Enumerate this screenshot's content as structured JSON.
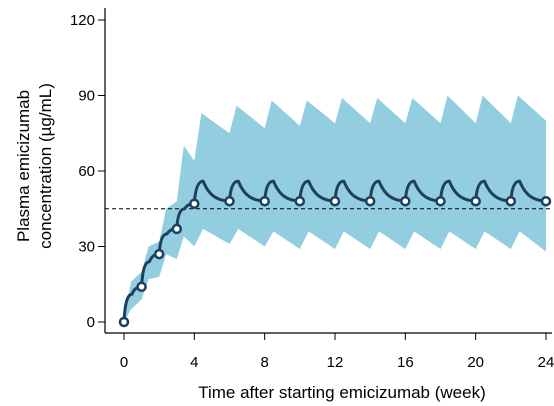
{
  "chart_data": {
    "type": "line",
    "xlabel": "Time after starting emicizumab (week)",
    "ylabel_line1": "Plasma emicizumab",
    "ylabel_line2": "concentration (µg/mL)",
    "xlim": [
      0,
      24
    ],
    "ylim": [
      0,
      120
    ],
    "x_ticks": [
      0,
      4,
      8,
      12,
      16,
      20,
      24
    ],
    "y_ticks": [
      0,
      30,
      60,
      90,
      120
    ],
    "reference_line_y": 45,
    "colors": {
      "median_line": "#1f3f5e",
      "band": "#92cee0",
      "reference_line": "#000000",
      "marker_fill": "#ffffff"
    },
    "series": [
      {
        "role": "median",
        "loading_dose_times": [
          0,
          1,
          2,
          3
        ],
        "maintenance_dose_times": [
          4,
          6,
          8,
          10,
          12,
          14,
          16,
          18,
          20,
          22
        ],
        "trough_points": [
          {
            "x": 0,
            "y": 0
          },
          {
            "x": 1,
            "y": 14
          },
          {
            "x": 2,
            "y": 27
          },
          {
            "x": 3,
            "y": 37
          },
          {
            "x": 4,
            "y": 47
          },
          {
            "x": 6,
            "y": 48
          },
          {
            "x": 8,
            "y": 48
          },
          {
            "x": 10,
            "y": 48
          },
          {
            "x": 12,
            "y": 48
          },
          {
            "x": 14,
            "y": 48
          },
          {
            "x": 16,
            "y": 48
          },
          {
            "x": 18,
            "y": 48
          },
          {
            "x": 20,
            "y": 48
          },
          {
            "x": 22,
            "y": 48
          },
          {
            "x": 24,
            "y": 48
          }
        ],
        "peak_points": [
          {
            "x": 0.45,
            "y": 11
          },
          {
            "x": 1.45,
            "y": 24
          },
          {
            "x": 2.45,
            "y": 35
          },
          {
            "x": 3.45,
            "y": 45
          },
          {
            "x": 4.5,
            "y": 56
          },
          {
            "x": 6.5,
            "y": 56
          },
          {
            "x": 8.5,
            "y": 56
          },
          {
            "x": 10.5,
            "y": 56
          },
          {
            "x": 12.5,
            "y": 56
          },
          {
            "x": 14.5,
            "y": 56
          },
          {
            "x": 16.5,
            "y": 56
          },
          {
            "x": 18.5,
            "y": 56
          },
          {
            "x": 20.5,
            "y": 56
          },
          {
            "x": 22.5,
            "y": 56
          }
        ]
      },
      {
        "role": "interval",
        "upper": [
          {
            "x": 0,
            "y": 0
          },
          {
            "x": 0.4,
            "y": 16
          },
          {
            "x": 1,
            "y": 20
          },
          {
            "x": 1.4,
            "y": 30
          },
          {
            "x": 2,
            "y": 32
          },
          {
            "x": 2.4,
            "y": 45
          },
          {
            "x": 3,
            "y": 48
          },
          {
            "x": 3.4,
            "y": 70
          },
          {
            "x": 4,
            "y": 64
          },
          {
            "x": 4.4,
            "y": 83
          },
          {
            "x": 6,
            "y": 75
          },
          {
            "x": 6.4,
            "y": 86
          },
          {
            "x": 8,
            "y": 77
          },
          {
            "x": 8.4,
            "y": 88
          },
          {
            "x": 10,
            "y": 78
          },
          {
            "x": 10.4,
            "y": 88
          },
          {
            "x": 12,
            "y": 79
          },
          {
            "x": 12.4,
            "y": 89
          },
          {
            "x": 14,
            "y": 79
          },
          {
            "x": 14.4,
            "y": 89
          },
          {
            "x": 16,
            "y": 79
          },
          {
            "x": 16.4,
            "y": 89
          },
          {
            "x": 18,
            "y": 79
          },
          {
            "x": 18.4,
            "y": 90
          },
          {
            "x": 20,
            "y": 79
          },
          {
            "x": 20.4,
            "y": 90
          },
          {
            "x": 22,
            "y": 79
          },
          {
            "x": 22.4,
            "y": 90
          },
          {
            "x": 24,
            "y": 80
          }
        ],
        "lower": [
          {
            "x": 0,
            "y": 0
          },
          {
            "x": 0.4,
            "y": 5
          },
          {
            "x": 1,
            "y": 9
          },
          {
            "x": 1.4,
            "y": 17
          },
          {
            "x": 2,
            "y": 18
          },
          {
            "x": 2.4,
            "y": 27
          },
          {
            "x": 3,
            "y": 25
          },
          {
            "x": 3.4,
            "y": 34
          },
          {
            "x": 4,
            "y": 30
          },
          {
            "x": 4.5,
            "y": 37
          },
          {
            "x": 6,
            "y": 31
          },
          {
            "x": 6.5,
            "y": 37
          },
          {
            "x": 8,
            "y": 30
          },
          {
            "x": 8.5,
            "y": 36
          },
          {
            "x": 10,
            "y": 29
          },
          {
            "x": 10.5,
            "y": 36
          },
          {
            "x": 12,
            "y": 29
          },
          {
            "x": 12.5,
            "y": 36
          },
          {
            "x": 14,
            "y": 29
          },
          {
            "x": 14.5,
            "y": 36
          },
          {
            "x": 16,
            "y": 29
          },
          {
            "x": 16.5,
            "y": 36
          },
          {
            "x": 18,
            "y": 29
          },
          {
            "x": 18.5,
            "y": 36
          },
          {
            "x": 20,
            "y": 29
          },
          {
            "x": 20.5,
            "y": 36
          },
          {
            "x": 22,
            "y": 29
          },
          {
            "x": 22.5,
            "y": 36
          },
          {
            "x": 24,
            "y": 28
          }
        ]
      }
    ]
  }
}
